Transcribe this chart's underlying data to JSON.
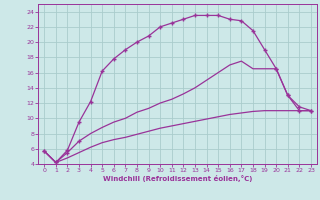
{
  "xlabel": "Windchill (Refroidissement éolien,°C)",
  "bg_color": "#cde8e8",
  "grid_color": "#aacccc",
  "line_color": "#993399",
  "xlim": [
    0,
    23
  ],
  "ylim": [
    4,
    24
  ],
  "xticks": [
    0,
    1,
    2,
    3,
    4,
    5,
    6,
    7,
    8,
    9,
    10,
    11,
    12,
    13,
    14,
    15,
    16,
    17,
    18,
    19,
    20,
    21,
    22,
    23
  ],
  "yticks": [
    4,
    6,
    8,
    10,
    12,
    14,
    16,
    18,
    20,
    22,
    24
  ],
  "line1_x": [
    0,
    1,
    2,
    3,
    4,
    5,
    6,
    7,
    8,
    9,
    10,
    11,
    12,
    13,
    14,
    15,
    16,
    17,
    18,
    19,
    20,
    21,
    22,
    23
  ],
  "line1_y": [
    5.7,
    4.2,
    5.8,
    9.5,
    12.2,
    16.2,
    17.8,
    19.0,
    20.0,
    20.8,
    22.0,
    22.5,
    23.0,
    23.5,
    23.5,
    23.5,
    23.0,
    22.8,
    21.5,
    19.0,
    16.5,
    13.0,
    11.0,
    11.0
  ],
  "line2_x": [
    0,
    1,
    2,
    3,
    4,
    5,
    6,
    7,
    8,
    9,
    10,
    11,
    12,
    13,
    14,
    15,
    16,
    17,
    18,
    19,
    20,
    21,
    22,
    23
  ],
  "line2_y": [
    5.7,
    4.2,
    5.5,
    7.0,
    8.0,
    8.8,
    9.5,
    10.0,
    10.8,
    11.3,
    12.0,
    12.5,
    13.2,
    14.0,
    15.0,
    16.0,
    17.0,
    17.5,
    16.5,
    16.5,
    16.5,
    13.0,
    11.5,
    11.0
  ],
  "line3_x": [
    0,
    1,
    2,
    3,
    4,
    5,
    6,
    7,
    8,
    9,
    10,
    11,
    12,
    13,
    14,
    15,
    16,
    17,
    18,
    19,
    20,
    21,
    22,
    23
  ],
  "line3_y": [
    5.7,
    4.2,
    4.8,
    5.5,
    6.2,
    6.8,
    7.2,
    7.5,
    7.9,
    8.3,
    8.7,
    9.0,
    9.3,
    9.6,
    9.9,
    10.2,
    10.5,
    10.7,
    10.9,
    11.0,
    11.0,
    11.0,
    11.0,
    11.0
  ],
  "marker1_x": [
    0,
    1,
    2,
    3,
    4,
    5,
    6,
    7,
    8,
    9,
    10,
    11,
    12,
    13,
    14,
    15,
    16,
    17,
    18,
    19,
    20,
    21,
    22,
    23
  ],
  "marker2_x": [
    0,
    1,
    2,
    3,
    20,
    21,
    22,
    23
  ],
  "marker2_y": [
    5.7,
    4.2,
    5.5,
    7.0,
    16.5,
    13.0,
    11.5,
    11.0
  ]
}
